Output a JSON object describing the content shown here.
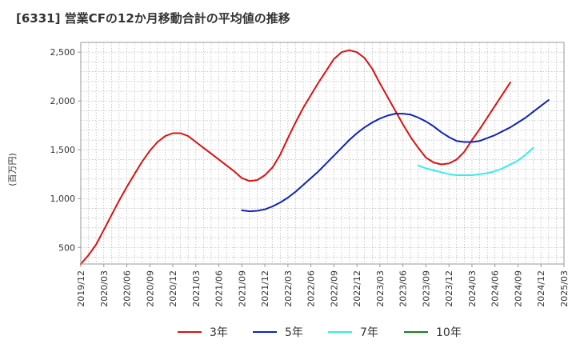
{
  "title": "[6331]  営業CFの12か月移動合計の平均値の推移",
  "chart_data": {
    "type": "line",
    "title": "[6331]  営業CFの12か月移動合計の平均値の推移",
    "ylabel": "(百万円)",
    "xlabel": "",
    "ylim": [
      330,
      2600
    ],
    "yticks": [
      500,
      1000,
      1500,
      2000,
      2500
    ],
    "ytick_labels": [
      "500",
      "1,000",
      "1,500",
      "2,000",
      "2,500"
    ],
    "xlim": [
      "2019/12",
      "2025/03"
    ],
    "xtick_labels": [
      "2019/12",
      "2020/03",
      "2020/06",
      "2020/09",
      "2020/12",
      "2021/03",
      "2021/06",
      "2021/09",
      "2021/12",
      "2022/03",
      "2022/06",
      "2022/09",
      "2022/12",
      "2023/03",
      "2023/06",
      "2023/09",
      "2023/12",
      "2024/03",
      "2024/06",
      "2024/09",
      "2024/12",
      "2025/03"
    ],
    "grid": true,
    "legend_position": "bottom",
    "series": [
      {
        "name": "3年",
        "color": "#dd1111",
        "start": "2019/12",
        "values": [
          330,
          420,
          530,
          680,
          830,
          980,
          1120,
          1250,
          1380,
          1490,
          1580,
          1640,
          1670,
          1670,
          1640,
          1580,
          1520,
          1460,
          1400,
          1340,
          1280,
          1210,
          1180,
          1190,
          1240,
          1320,
          1450,
          1620,
          1780,
          1930,
          2060,
          2190,
          2310,
          2430,
          2500,
          2520,
          2500,
          2440,
          2330,
          2180,
          2040,
          1900,
          1760,
          1630,
          1520,
          1420,
          1370,
          1350,
          1360,
          1400,
          1480,
          1600,
          1710,
          1830,
          1950,
          2070,
          2190
        ]
      },
      {
        "name": "5年",
        "color": "#1122bb",
        "start": "2021/09",
        "values": [
          880,
          870,
          875,
          890,
          920,
          960,
          1010,
          1070,
          1140,
          1210,
          1280,
          1360,
          1440,
          1520,
          1600,
          1670,
          1730,
          1780,
          1820,
          1850,
          1870,
          1870,
          1860,
          1830,
          1790,
          1740,
          1680,
          1630,
          1590,
          1580,
          1580,
          1590,
          1620,
          1650,
          1690,
          1730,
          1780,
          1830,
          1890,
          1950,
          2010
        ]
      },
      {
        "name": "7年",
        "color": "#33eeee",
        "start": "2023/08",
        "values": [
          1340,
          1310,
          1290,
          1270,
          1250,
          1240,
          1240,
          1240,
          1250,
          1260,
          1280,
          1310,
          1350,
          1390,
          1450,
          1520
        ]
      },
      {
        "name": "10年",
        "color": "#118811",
        "start": "2019/12",
        "values": []
      }
    ]
  }
}
